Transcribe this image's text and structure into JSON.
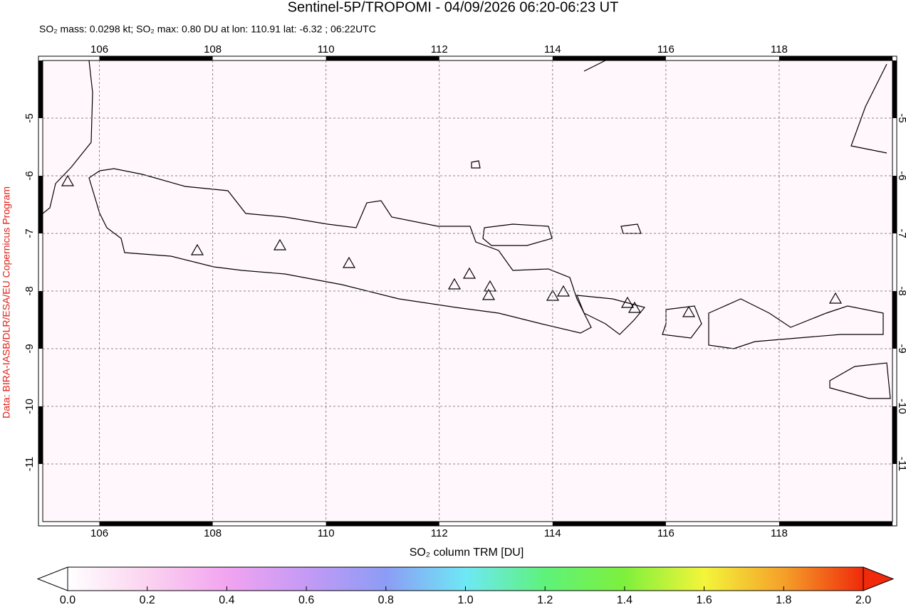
{
  "chart_data": {
    "type": "map",
    "title": "Sentinel-5P/TROPOMI - 04/09/2026 06:20-06:23 UT",
    "subtitle": "SO₂ mass: 0.0298 kt; SO₂ max: 0.80 DU at lon: 110.91 lat: -6.32 ; 06:22UTC",
    "source": "Data: BIRA-IASB/DLR/ESA/EU Copernicus Program",
    "xlim": [
      105,
      120
    ],
    "ylim": [
      -12,
      -4
    ],
    "xticks": [
      106,
      108,
      110,
      112,
      114,
      116,
      118
    ],
    "yticks": [
      -5,
      -6,
      -7,
      -8,
      -9,
      -10,
      -11
    ],
    "grid": true,
    "colorbar": {
      "label": "SO₂ column TRM [DU]",
      "lim": [
        0,
        2
      ],
      "ticks": [
        {
          "value": 0,
          "label": "0.0"
        },
        0.2,
        0.4,
        0.6,
        0.8,
        {
          "value": 1,
          "label": "1.0"
        },
        1.2,
        1.4,
        1.6,
        1.8,
        {
          "value": 2,
          "label": "2.0"
        }
      ],
      "colors": [
        "#ffffff",
        "#fbd3f0",
        "#f2a4f0",
        "#c49af5",
        "#8c9cf5",
        "#6ee8f5",
        "#5ef27a",
        "#7ef03c",
        "#f4f53a",
        "#f5a02a",
        "#f02a0a"
      ]
    }
  }
}
